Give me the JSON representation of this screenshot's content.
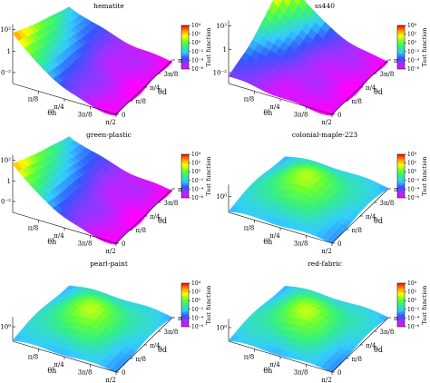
{
  "chart_data": [
    {
      "type": "surface",
      "title": "hematite",
      "xlabel": "θh",
      "ylabel": "θd",
      "x_ticks": [
        "π/8",
        "π/4",
        "3π/8",
        "π/2"
      ],
      "y_ticks": [
        "0",
        "π/8",
        "π/4",
        "3π/8",
        "π/2"
      ],
      "z_ticks": [
        "10²",
        "1",
        "10⁻²"
      ],
      "colorbar": {
        "label": "Test function",
        "ticks": [
          "10⁴",
          "10²",
          "10⁰",
          "10⁻²",
          "10⁻⁴",
          "10⁻⁶"
        ]
      },
      "surface": {
        "peak": 2.6,
        "peak_position": "front-left ridge",
        "floor": -3.0,
        "style": "steep"
      }
    },
    {
      "type": "surface",
      "title": "ss440",
      "xlabel": "θh",
      "ylabel": "θd",
      "x_ticks": [
        "π/8",
        "π/4",
        "3π/8",
        "π/2"
      ],
      "y_ticks": [
        "0",
        "π/8",
        "π/4",
        "3π/8",
        "π/2"
      ],
      "z_ticks": [
        "10²",
        "1",
        "10⁻²"
      ],
      "colorbar": {
        "label": "Test function",
        "ticks": [
          "10⁴",
          "10²",
          "10⁰",
          "10⁻²",
          "10⁻⁴",
          "10⁻⁶"
        ]
      },
      "surface": {
        "peak": 3.0,
        "peak_position": "back-left ridge",
        "floor": -3.0,
        "style": "steep"
      }
    },
    {
      "type": "surface",
      "title": "green-plastic",
      "xlabel": "θh",
      "ylabel": "θd",
      "x_ticks": [
        "π/8",
        "π/4",
        "3π/8",
        "π/2"
      ],
      "y_ticks": [
        "0",
        "π/8",
        "π/4",
        "3π/8",
        "π/2"
      ],
      "z_ticks": [
        "10²",
        "1",
        "10⁻²"
      ],
      "colorbar": {
        "label": "Test function",
        "ticks": [
          "10⁴",
          "10²",
          "10⁰",
          "10⁻²",
          "10⁻⁴",
          "10⁻⁶"
        ]
      },
      "surface": {
        "peak": 2.4,
        "peak_position": "front-left ridge",
        "floor": -3.0,
        "style": "steep"
      }
    },
    {
      "type": "surface",
      "title": "colonial-maple-223",
      "xlabel": "θh",
      "ylabel": "θd",
      "x_ticks": [
        "π/8",
        "π/4",
        "3π/8",
        "π/2"
      ],
      "y_ticks": [
        "0",
        "π/8",
        "π/4",
        "3π/8",
        "π/2"
      ],
      "z_ticks": [
        "10⁰"
      ],
      "colorbar": {
        "label": "Test function",
        "ticks": [
          "10⁴",
          "10²",
          "10⁰",
          "10⁻²",
          "10⁻⁴",
          "10⁻⁶"
        ]
      },
      "surface": {
        "peak": 1.6,
        "peak_position": "centre",
        "floor": -0.5,
        "style": "smooth"
      }
    },
    {
      "type": "surface",
      "title": "pearl-paint",
      "xlabel": "θh",
      "ylabel": "θd",
      "x_ticks": [
        "π/8",
        "π/4",
        "3π/8",
        "π/2"
      ],
      "y_ticks": [
        "0",
        "π/8",
        "π/4",
        "3π/8",
        "π/2"
      ],
      "z_ticks": [
        "10⁰"
      ],
      "colorbar": {
        "label": "Test function",
        "ticks": [
          "10⁴",
          "10²",
          "10⁰",
          "10⁻²",
          "10⁻⁴",
          "10⁻⁶"
        ]
      },
      "surface": {
        "peak": 1.2,
        "peak_position": "centre",
        "floor": -0.5,
        "style": "smooth"
      }
    },
    {
      "type": "surface",
      "title": "red-fabric",
      "xlabel": "θh",
      "ylabel": "θd",
      "x_ticks": [
        "π/8",
        "π/4",
        "3π/8",
        "π/2"
      ],
      "y_ticks": [
        "0",
        "π/8",
        "π/4",
        "3π/8",
        "π/2"
      ],
      "z_ticks": [
        "10⁰"
      ],
      "colorbar": {
        "label": "Test function",
        "ticks": [
          "10⁴",
          "10²",
          "10⁰",
          "10⁻²",
          "10⁻⁴",
          "10⁻⁶"
        ]
      },
      "surface": {
        "peak": 1.0,
        "peak_position": "centre",
        "floor": -0.5,
        "style": "smooth"
      }
    }
  ],
  "colors": {
    "colormap": [
      "#ff00ff",
      "#9933ff",
      "#3355ff",
      "#33ccff",
      "#33ee88",
      "#66ff33",
      "#ffff00",
      "#ff9900",
      "#ff0000"
    ],
    "axis": "#000000"
  }
}
